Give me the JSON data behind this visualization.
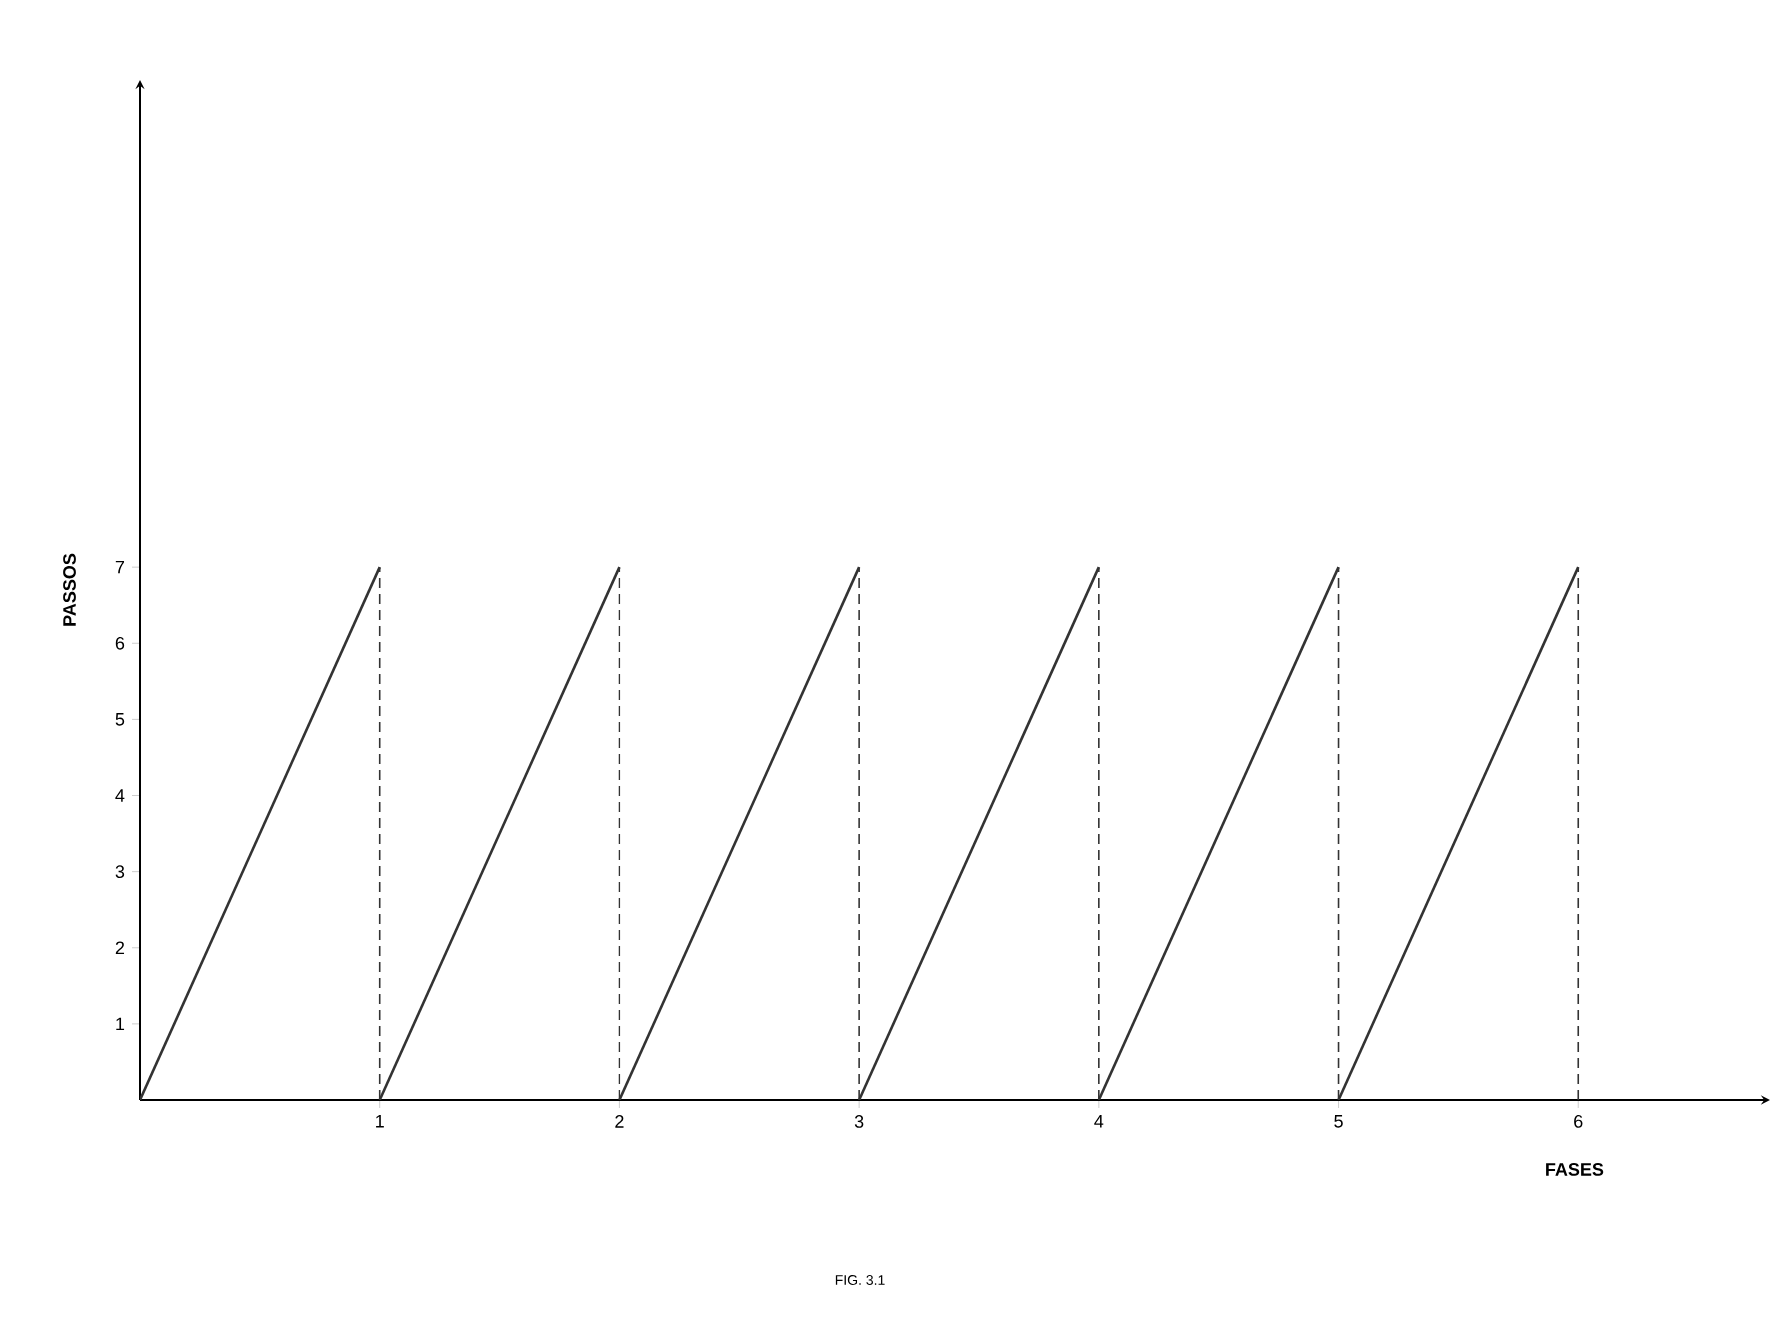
{
  "chart_data": {
    "type": "line",
    "xlabel": "FASES",
    "ylabel": "PASSOS",
    "annotations": [
      "FIG. 3.1"
    ],
    "xlim": [
      0,
      6.8
    ],
    "ylim": [
      0,
      13.4
    ],
    "xticks": [
      1,
      2,
      3,
      4,
      5,
      6
    ],
    "yticks": [
      1,
      2,
      3,
      4,
      5,
      6,
      7
    ],
    "series": [
      {
        "color": "#333333",
        "line_style": "solid",
        "x": [
          0,
          1
        ],
        "values": [
          0,
          7
        ]
      },
      {
        "color": "#333333",
        "line_style": "solid",
        "x": [
          1,
          2
        ],
        "values": [
          0,
          7
        ]
      },
      {
        "color": "#333333",
        "line_style": "solid",
        "x": [
          2,
          3
        ],
        "values": [
          0,
          7
        ]
      },
      {
        "color": "#333333",
        "line_style": "solid",
        "x": [
          3,
          4
        ],
        "values": [
          0,
          7
        ]
      },
      {
        "color": "#333333",
        "line_style": "solid",
        "x": [
          4,
          5
        ],
        "values": [
          0,
          7
        ]
      },
      {
        "color": "#333333",
        "line_style": "solid",
        "x": [
          5,
          6
        ],
        "values": [
          0,
          7
        ]
      },
      {
        "color": "#333333",
        "line_style": "dashed",
        "x": [
          1,
          1
        ],
        "values": [
          0,
          7
        ]
      },
      {
        "color": "#333333",
        "line_style": "dashed",
        "x": [
          2,
          2
        ],
        "values": [
          0,
          7
        ]
      },
      {
        "color": "#333333",
        "line_style": "dashed",
        "x": [
          3,
          3
        ],
        "values": [
          0,
          7
        ]
      },
      {
        "color": "#333333",
        "line_style": "dashed",
        "x": [
          4,
          4
        ],
        "values": [
          0,
          7
        ]
      },
      {
        "color": "#333333",
        "line_style": "dashed",
        "x": [
          5,
          5
        ],
        "values": [
          0,
          7
        ]
      },
      {
        "color": "#333333",
        "line_style": "dashed",
        "x": [
          6,
          6
        ],
        "values": [
          0,
          7
        ]
      }
    ]
  }
}
